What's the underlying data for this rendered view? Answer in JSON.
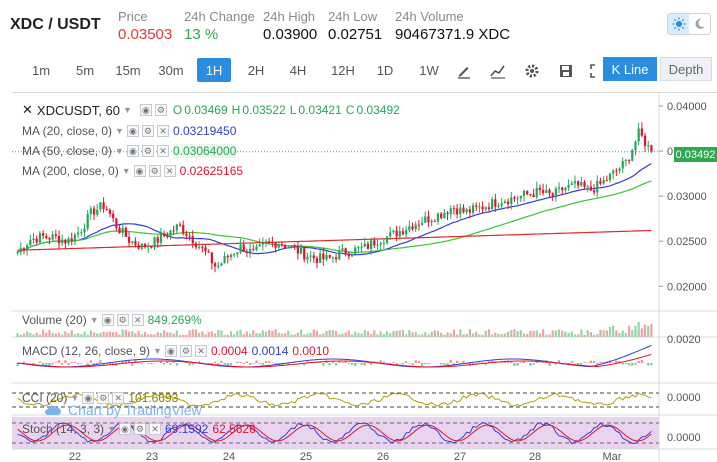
{
  "header": {
    "pair": "XDC / USDT",
    "price_label": "Price",
    "price": "0.03503",
    "change_label": "24h Change",
    "change": "13 %",
    "high_label": "24h High",
    "high": "0.03900",
    "low_label": "24h Low",
    "low": "0.02751",
    "volume_label": "24h Volume",
    "volume": "90467371.9 XDC"
  },
  "toolbar": {
    "intervals": [
      "1m",
      "5m",
      "15m",
      "30m",
      "1H",
      "2H",
      "4H",
      "12H",
      "1D",
      "1W"
    ],
    "active_interval": "1H",
    "icons": [
      "draw-icon",
      "indicators-icon",
      "settings-icon",
      "save-icon",
      "fullscreen-icon"
    ],
    "kline_label": "K Line",
    "depth_label": "Depth"
  },
  "legend": {
    "symbol": "XDCUSDT, 60",
    "ohlc": {
      "o_label": "O",
      "o": "0.03469",
      "h_label": "H",
      "h": "0.03522",
      "l_label": "L",
      "l": "0.03421",
      "c_label": "C",
      "c": "0.03492"
    },
    "ma20_label": "MA (20, close, 0)",
    "ma20_value": "0.03219450",
    "ma50_label": "MA (50, close, 0)",
    "ma50_value": "0.03064000",
    "ma200_label": "MA (200, close, 0)",
    "ma200_value": "0.02625165",
    "volume_label": "Volume (20)",
    "volume_value": "849.269%",
    "macd_label": "MACD (12, 26, close, 9)",
    "macd_v1": "0.0004",
    "macd_v2": "0.0014",
    "macd_v3": "0.0010",
    "cci_label": "CCI (20)",
    "cci_value": "101.6693",
    "stoch_label": "Stoch (14, 3, 3)",
    "stoch_v1": "69.1592",
    "stoch_v2": "62.5626",
    "watermark": "Chart by TradingView",
    "current_price": "0.03492"
  },
  "colors": {
    "up": "#26a65b",
    "down": "#e0152c",
    "ma20": "#3a3ad8",
    "ma50": "#37c437",
    "ma200": "#e02a2a",
    "accent": "#2b8de0"
  },
  "chart_data": {
    "type": "candlestick",
    "x_ticks": [
      "22",
      "23",
      "24",
      "25",
      "26",
      "27",
      "28",
      "Mar"
    ],
    "price_axis": [
      "0.04000",
      "0.03500",
      "0.03000",
      "0.02500",
      "0.02000"
    ],
    "price_ylim": [
      0.0177,
      0.041
    ],
    "macd_axis": [
      "0.0020"
    ],
    "cci_axis": [
      "0.0000"
    ],
    "stoch_axis": [
      "0.0000"
    ],
    "close_path": [
      0.0238,
      0.0252,
      0.0255,
      0.0254,
      0.025,
      0.0261,
      0.0283,
      0.029,
      0.0266,
      0.0251,
      0.0244,
      0.0249,
      0.0258,
      0.0267,
      0.0254,
      0.0239,
      0.0221,
      0.0234,
      0.0244,
      0.0236,
      0.0247,
      0.0249,
      0.0243,
      0.0236,
      0.0231,
      0.023,
      0.0237,
      0.024,
      0.0243,
      0.0252,
      0.0256,
      0.0263,
      0.027,
      0.0275,
      0.028,
      0.0288,
      0.0282,
      0.0286,
      0.0291,
      0.0296,
      0.0298,
      0.0302,
      0.0305,
      0.03,
      0.0309,
      0.0312,
      0.0306,
      0.0314,
      0.0326,
      0.0338,
      0.037,
      0.0349
    ]
  }
}
